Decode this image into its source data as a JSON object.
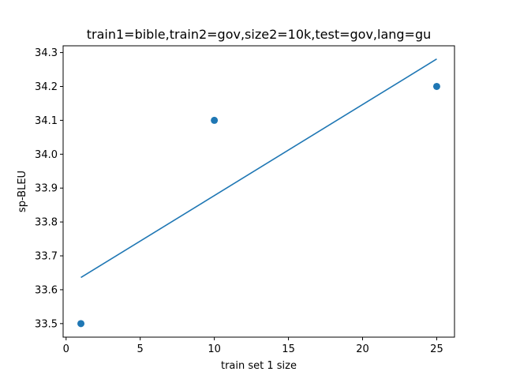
{
  "chart_data": {
    "type": "scatter",
    "title": "train1=bible,train2=gov,size2=10k,test=gov,lang=gu",
    "xlabel": "train set 1 size",
    "ylabel": "sp-BLEU",
    "xlim": [
      -0.2,
      26.2
    ],
    "ylim": [
      33.46,
      34.32
    ],
    "xticks": [
      0,
      5,
      10,
      15,
      20,
      25
    ],
    "yticks": [
      33.5,
      33.6,
      33.7,
      33.8,
      33.9,
      34.0,
      34.1,
      34.2,
      34.3
    ],
    "xtick_labels": [
      "0",
      "5",
      "10",
      "15",
      "20",
      "25"
    ],
    "ytick_labels": [
      "33.5",
      "33.6",
      "33.7",
      "33.8",
      "33.9",
      "34.0",
      "34.1",
      "34.2",
      "34.3"
    ],
    "grid": false,
    "series": [
      {
        "kind": "scatter",
        "x": [
          1,
          10,
          25
        ],
        "y": [
          33.5,
          34.1,
          34.2
        ],
        "color": "#1f77b4"
      },
      {
        "kind": "line",
        "x": [
          1,
          25
        ],
        "y": [
          33.636,
          34.281
        ],
        "color": "#1f77b4"
      }
    ]
  }
}
